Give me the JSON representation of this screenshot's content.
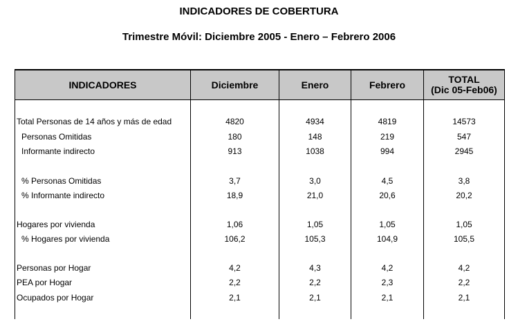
{
  "title": "INDICADORES DE COBERTURA",
  "subtitle": "Trimestre Móvil: Diciembre 2005 - Enero – Febrero 2006",
  "table": {
    "headers": {
      "indicadores": "INDICADORES",
      "diciembre": "Diciembre",
      "enero": "Enero",
      "febrero": "Febrero",
      "total_line1": "TOTAL",
      "total_line2": "(Dic 05-Feb06)"
    },
    "rows": [
      {
        "label": "Total Personas de 14 años y más de edad",
        "dic": "4820",
        "ene": "4934",
        "feb": "4819",
        "total": "14573"
      },
      {
        "label": "Personas Omitidas",
        "dic": "180",
        "ene": "148",
        "feb": "219",
        "total": "547"
      },
      {
        "label": "Informante indirecto",
        "dic": "913",
        "ene": "1038",
        "feb": "994",
        "total": "2945"
      },
      {
        "label": "% Personas Omitidas",
        "dic": "3,7",
        "ene": "3,0",
        "feb": "4,5",
        "total": "3,8"
      },
      {
        "label": "% Informante indirecto",
        "dic": "18,9",
        "ene": "21,0",
        "feb": "20,6",
        "total": "20,2"
      },
      {
        "label": "Hogares por vivienda",
        "dic": "1,06",
        "ene": "1,05",
        "feb": "1,05",
        "total": "1,05"
      },
      {
        "label": "% Hogares por vivienda",
        "dic": "106,2",
        "ene": "105,3",
        "feb": "104,9",
        "total": "105,5"
      },
      {
        "label": "Personas por Hogar",
        "dic": "4,2",
        "ene": "4,3",
        "feb": "4,2",
        "total": "4,2"
      },
      {
        "label": "PEA por Hogar",
        "dic": "2,2",
        "ene": "2,2",
        "feb": "2,3",
        "total": "2,2"
      },
      {
        "label": "Ocupados por Hogar",
        "dic": "2,1",
        "ene": "2,1",
        "feb": "2,1",
        "total": "2,1"
      }
    ]
  }
}
